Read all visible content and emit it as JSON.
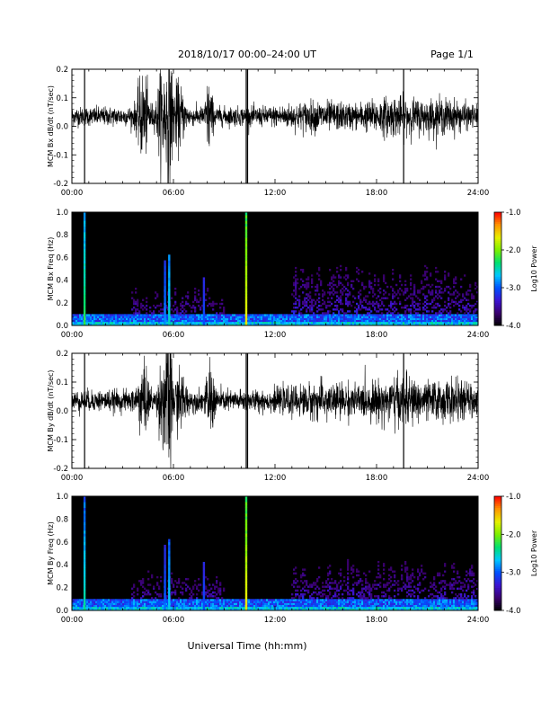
{
  "header": {
    "date_range": "2018/10/17   00:00–24:00 UT",
    "page": "Page 1/1"
  },
  "x_axis": {
    "label": "Universal Time (hh:mm)",
    "ticks": [
      "00:00",
      "06:00",
      "12:00",
      "18:00",
      "24:00"
    ],
    "range_hours": [
      0,
      24
    ]
  },
  "colors": {
    "trace": "#000000",
    "background": "#000000",
    "frame": "#000000"
  },
  "colorbar": {
    "label": "Log10 Power",
    "ticks": [
      "-1.0",
      "-2.0",
      "-3.0",
      "-4.0"
    ],
    "range": [
      -4.0,
      -1.0
    ],
    "colormap": [
      "#000000",
      "#3a006e",
      "#3c14d2",
      "#0050ff",
      "#00c8ff",
      "#00e070",
      "#7cf000",
      "#e6f000",
      "#ff9600",
      "#ff0000"
    ]
  },
  "chart_data": [
    {
      "type": "line",
      "ylabel": "MCM Bx dB/dt (nT/sec)",
      "ylim": [
        -0.2,
        0.2
      ],
      "yticks": [
        "0.2",
        "0.1",
        "0.0",
        "-0.1",
        "-0.2"
      ],
      "baseline": 0.035,
      "noise": 0.018,
      "bursts": [
        {
          "t": 4.2,
          "w": 0.35,
          "a": 0.07
        },
        {
          "t": 5.3,
          "w": 0.25,
          "a": 0.09
        },
        {
          "t": 5.75,
          "w": 0.2,
          "a": 0.12
        },
        {
          "t": 6.3,
          "w": 0.35,
          "a": 0.05
        },
        {
          "t": 8.1,
          "w": 0.2,
          "a": 0.06
        },
        {
          "t": 14.5,
          "w": 2.0,
          "a": 0.012
        },
        {
          "t": 19.0,
          "w": 1.8,
          "a": 0.02
        },
        {
          "t": 22.0,
          "w": 1.5,
          "a": 0.015
        }
      ],
      "spikes": [
        {
          "t": 0.75,
          "lo": -0.2,
          "hi": 0.2
        },
        {
          "t": 10.3,
          "lo": -0.2,
          "hi": 0.2
        },
        {
          "t": 10.38,
          "lo": -0.2,
          "hi": 0.2
        },
        {
          "t": 19.6,
          "lo": -0.2,
          "hi": 0.2
        }
      ]
    },
    {
      "type": "heatmap",
      "ylabel": "MCM Bx Freq (Hz)",
      "ylim": [
        0.0,
        1.0
      ],
      "yticks": [
        "1.0",
        "0.8",
        "0.6",
        "0.4",
        "0.2",
        "0.0"
      ],
      "zlim": [
        -4.0,
        -1.0
      ],
      "columns": [
        {
          "t": 0.75,
          "level": -2.2,
          "h": 1.0
        },
        {
          "t": 5.5,
          "level": -2.8,
          "h": 0.55
        },
        {
          "t": 5.75,
          "level": -2.5,
          "h": 0.6
        },
        {
          "t": 7.8,
          "level": -3.0,
          "h": 0.4
        },
        {
          "t": 10.3,
          "level": -1.6,
          "h": 1.0
        }
      ],
      "activity_regions": [
        {
          "t0": 3.5,
          "t1": 9.0,
          "h": 0.35
        },
        {
          "t0": 13.0,
          "t1": 24.0,
          "h": 0.55
        }
      ]
    },
    {
      "type": "line",
      "ylabel": "MCM By dB/dt (nT/sec)",
      "ylim": [
        -0.2,
        0.2
      ],
      "yticks": [
        "0.2",
        "0.1",
        "0.0",
        "-0.1",
        "-0.2"
      ],
      "baseline": 0.035,
      "noise": 0.02,
      "bursts": [
        {
          "t": 4.2,
          "w": 0.35,
          "a": 0.05
        },
        {
          "t": 5.4,
          "w": 0.25,
          "a": 0.08
        },
        {
          "t": 5.75,
          "w": 0.2,
          "a": 0.13
        },
        {
          "t": 6.4,
          "w": 0.35,
          "a": 0.04
        },
        {
          "t": 8.2,
          "w": 0.25,
          "a": 0.05
        },
        {
          "t": 15.0,
          "w": 2.2,
          "a": 0.015
        },
        {
          "t": 19.3,
          "w": 1.8,
          "a": 0.025
        },
        {
          "t": 22.5,
          "w": 1.5,
          "a": 0.018
        }
      ],
      "spikes": [
        {
          "t": 0.75,
          "lo": -0.2,
          "hi": 0.2
        },
        {
          "t": 10.3,
          "lo": -0.2,
          "hi": 0.2
        },
        {
          "t": 10.38,
          "lo": -0.2,
          "hi": 0.2
        },
        {
          "t": 19.6,
          "lo": -0.2,
          "hi": 0.2
        }
      ]
    },
    {
      "type": "heatmap",
      "ylabel": "MCM By Freq (Hz)",
      "ylim": [
        0.0,
        1.0
      ],
      "yticks": [
        "1.0",
        "0.8",
        "0.6",
        "0.4",
        "0.2",
        "0.0"
      ],
      "zlim": [
        -4.0,
        -1.0
      ],
      "columns": [
        {
          "t": 0.75,
          "level": -2.4,
          "h": 1.0
        },
        {
          "t": 5.5,
          "level": -2.9,
          "h": 0.55
        },
        {
          "t": 5.75,
          "level": -2.6,
          "h": 0.6
        },
        {
          "t": 7.8,
          "level": -3.0,
          "h": 0.4
        },
        {
          "t": 10.3,
          "level": -1.6,
          "h": 1.0
        }
      ],
      "activity_regions": [
        {
          "t0": 3.5,
          "t1": 9.0,
          "h": 0.35
        },
        {
          "t0": 13.0,
          "t1": 24.0,
          "h": 0.45
        }
      ]
    }
  ]
}
